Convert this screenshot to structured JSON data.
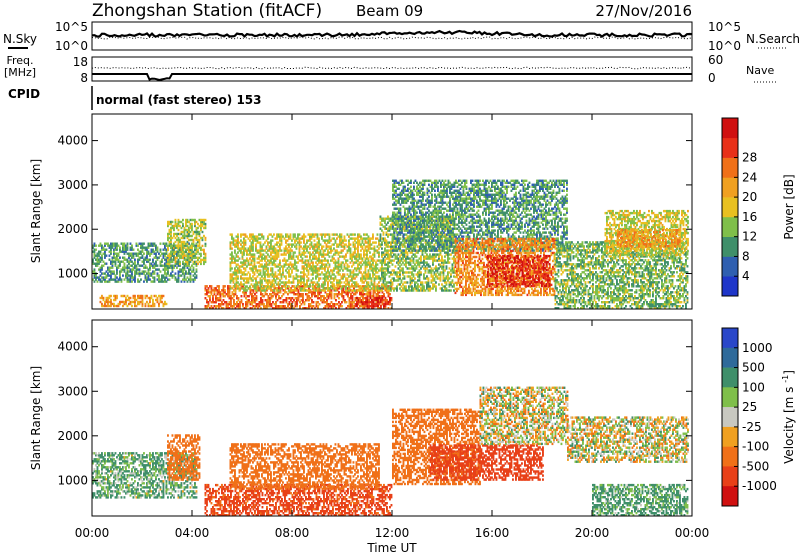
{
  "header": {
    "station": "Zhongshan Station (fitACF)",
    "beam": "Beam 09",
    "date": "27/Nov/2016"
  },
  "top_panels": {
    "nsky_label": "N.Sky",
    "nsky_ticks": [
      "10^5",
      "10^0"
    ],
    "nsearch_label": "N.Search",
    "nsearch_ticks": [
      "10^5",
      "10^0"
    ],
    "freq_label_1": "Freq.",
    "freq_label_2": "[MHz]",
    "freq_ticks": [
      "18",
      "8"
    ],
    "nave_label": "Nave",
    "nave_ticks": [
      "60",
      "0"
    ],
    "cpid_label": "CPID",
    "cpid_text": "normal (fast stereo) 153"
  },
  "colors": {
    "power_scale": [
      "#1f36c9",
      "#2f5fb0",
      "#3f8f6a",
      "#7fbf4a",
      "#e8c020",
      "#f0a020",
      "#f07018",
      "#e83018",
      "#d01010"
    ],
    "velocity_scale": [
      "#2a47c9",
      "#2f6a9a",
      "#3f8f6a",
      "#7fbf4a",
      "#c8c8c0",
      "#f0a020",
      "#f07018",
      "#e84018",
      "#d01010"
    ]
  },
  "chart_data": [
    {
      "type": "heatmap",
      "title": "",
      "quantity": "Power",
      "ylabel": "Slant Range [km]",
      "xlabel": "",
      "x_ticks": [
        "00:00",
        "04:00",
        "08:00",
        "12:00",
        "16:00",
        "20:00",
        "00:00"
      ],
      "y_ticks": [
        "1000",
        "2000",
        "3000",
        "4000"
      ],
      "ylim": [
        200,
        4600
      ],
      "xlim_hours": [
        0,
        24
      ],
      "colorbar_label": "Power [dB]",
      "colorbar_ticks": [
        "4",
        "8",
        "12",
        "16",
        "20",
        "24",
        "28"
      ],
      "zlim": [
        0,
        30
      ],
      "regions": [
        {
          "t": [
            0.0,
            4.2
          ],
          "range": [
            800,
            1700
          ],
          "level": 9
        },
        {
          "t": [
            0.3,
            3.0
          ],
          "range": [
            250,
            500
          ],
          "level": 18
        },
        {
          "t": [
            3.0,
            4.5
          ],
          "range": [
            1200,
            2200
          ],
          "level": 13
        },
        {
          "t": [
            4.5,
            12.0
          ],
          "range": [
            200,
            700
          ],
          "level": 22
        },
        {
          "t": [
            5.5,
            11.5
          ],
          "range": [
            600,
            1900
          ],
          "level": 14
        },
        {
          "t": [
            10.5,
            12.0
          ],
          "range": [
            250,
            450
          ],
          "level": 26
        },
        {
          "t": [
            11.5,
            14.5
          ],
          "range": [
            600,
            2300
          ],
          "level": 12
        },
        {
          "t": [
            12.0,
            19.0
          ],
          "range": [
            1500,
            3100
          ],
          "level": 9
        },
        {
          "t": [
            14.5,
            18.5
          ],
          "range": [
            500,
            1800
          ],
          "level": 20
        },
        {
          "t": [
            15.8,
            18.3
          ],
          "range": [
            700,
            1400
          ],
          "level": 26
        },
        {
          "t": [
            18.5,
            23.8
          ],
          "range": [
            200,
            1700
          ],
          "level": 11
        },
        {
          "t": [
            20.5,
            23.8
          ],
          "range": [
            1400,
            2400
          ],
          "level": 14
        },
        {
          "t": [
            21.0,
            23.5
          ],
          "range": [
            1600,
            2000
          ],
          "level": 19
        }
      ]
    },
    {
      "type": "heatmap",
      "title": "",
      "quantity": "Velocity",
      "ylabel": "Slant Range [km]",
      "xlabel": "Time UT",
      "x_ticks": [
        "00:00",
        "04:00",
        "08:00",
        "12:00",
        "16:00",
        "20:00",
        "00:00"
      ],
      "y_ticks": [
        "1000",
        "2000",
        "3000",
        "4000"
      ],
      "ylim": [
        200,
        4600
      ],
      "xlim_hours": [
        0,
        24
      ],
      "colorbar_label": "Velocity [m s-1]",
      "colorbar_ticks": [
        "1000",
        "500",
        "100",
        "25",
        "-25",
        "-100",
        "-500",
        "-1000"
      ],
      "regions": [
        {
          "t": [
            0.0,
            4.2
          ],
          "range": [
            600,
            1600
          ],
          "velocity": 120
        },
        {
          "t": [
            3.0,
            4.3
          ],
          "range": [
            1000,
            2000
          ],
          "velocity": -300
        },
        {
          "t": [
            4.5,
            12.0
          ],
          "range": [
            200,
            900
          ],
          "velocity": -600
        },
        {
          "t": [
            5.5,
            11.5
          ],
          "range": [
            800,
            1800
          ],
          "velocity": -300
        },
        {
          "t": [
            12.0,
            15.5
          ],
          "range": [
            900,
            2600
          ],
          "velocity": -250
        },
        {
          "t": [
            13.5,
            18.0
          ],
          "range": [
            1000,
            1800
          ],
          "velocity": -700
        },
        {
          "t": [
            15.5,
            19.0
          ],
          "range": [
            1800,
            3100
          ],
          "velocity": 0
        },
        {
          "t": [
            19.0,
            23.8
          ],
          "range": [
            1400,
            2400
          ],
          "velocity": 0
        },
        {
          "t": [
            20.0,
            23.8
          ],
          "range": [
            200,
            900
          ],
          "velocity": 150
        }
      ]
    }
  ]
}
